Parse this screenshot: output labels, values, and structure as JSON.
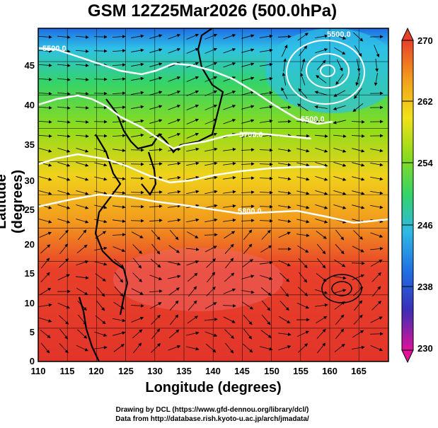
{
  "title": "GSM 12Z25Mar2026 (500.0hPa)",
  "x_axis": {
    "label": "Longitude (degrees)",
    "ticks": [
      "110",
      "115",
      "120",
      "125",
      "130",
      "135",
      "140",
      "145",
      "150",
      "155",
      "160",
      "165"
    ]
  },
  "y_axis": {
    "label": "Latitude  (degrees)",
    "ticks": [
      "0",
      "5",
      "10",
      "15",
      "20",
      "25",
      "30",
      "35",
      "40",
      "45"
    ]
  },
  "colorbar": {
    "tick_labels": [
      "270",
      "262",
      "254",
      "246",
      "238",
      "230"
    ],
    "colors": [
      "#e0129a",
      "#3a2fb6",
      "#1f6de3",
      "#2fb7e6",
      "#33d36b",
      "#8fdc1a",
      "#f0e21a",
      "#f29a1d",
      "#e8402a"
    ]
  },
  "contours": [
    {
      "label": "5500.0"
    },
    {
      "label": "5500.0"
    },
    {
      "label": "5500.0"
    },
    {
      "label": "5700.0"
    },
    {
      "label": "5800.0"
    }
  ],
  "credits": [
    "Drawing by DCL (https://www.gfd-dennou.org/library/dcl/)",
    "Data from http://database.rish.kyoto-u.ac.jp/arch/jmadata/"
  ]
}
